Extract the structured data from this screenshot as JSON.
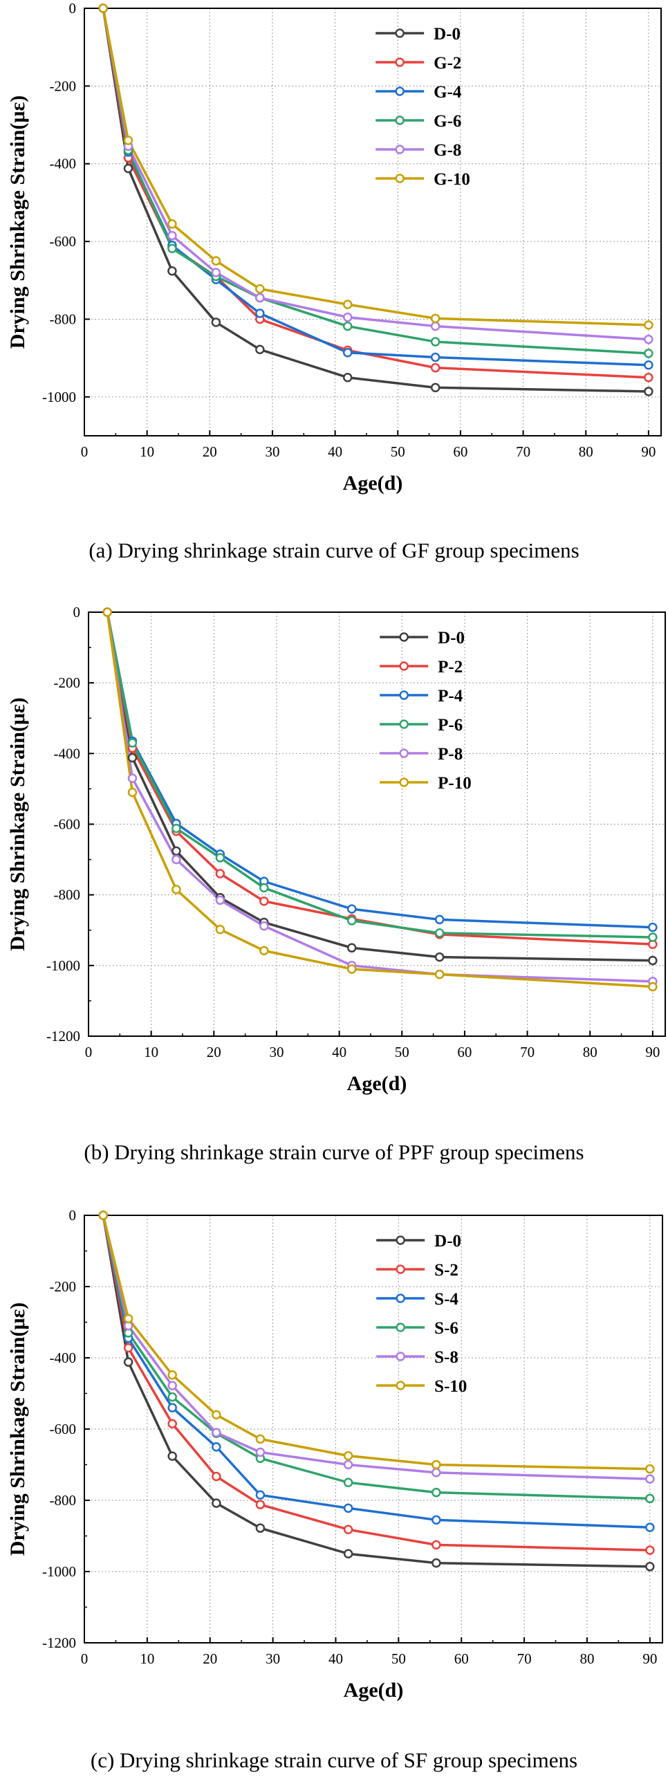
{
  "chart_data": [
    {
      "type": "line",
      "caption": "(a) Drying shrinkage strain curve of GF group specimens",
      "xlabel": "Age(d)",
      "ylabel": "Drying Shrinkage Strain(με)",
      "xlim": [
        0,
        92
      ],
      "ylim": [
        -1100,
        0
      ],
      "xticks": [
        0,
        10,
        20,
        30,
        40,
        50,
        60,
        70,
        80,
        90
      ],
      "yticks": [
        0,
        -200,
        -400,
        -600,
        -800,
        -1000
      ],
      "grid": true,
      "legend_position": "top-right",
      "x": [
        3,
        7,
        14,
        21,
        28,
        42,
        56,
        90
      ],
      "series": [
        {
          "name": "D-0",
          "color": "#404040",
          "values": [
            0,
            -412,
            -676,
            -808,
            -878,
            -950,
            -976,
            -986
          ]
        },
        {
          "name": "G-2",
          "color": "#e8413c",
          "values": [
            0,
            -385,
            -615,
            -690,
            -800,
            -880,
            -925,
            -950
          ]
        },
        {
          "name": "G-4",
          "color": "#1f6fd0",
          "values": [
            0,
            -370,
            -610,
            -698,
            -785,
            -886,
            -898,
            -918
          ]
        },
        {
          "name": "G-6",
          "color": "#2fa36b",
          "values": [
            0,
            -365,
            -618,
            -690,
            -745,
            -818,
            -858,
            -888
          ]
        },
        {
          "name": "G-8",
          "color": "#b07ce6",
          "values": [
            0,
            -355,
            -585,
            -680,
            -745,
            -795,
            -818,
            -852
          ]
        },
        {
          "name": "G-10",
          "color": "#c9a000",
          "values": [
            0,
            -340,
            -555,
            -650,
            -722,
            -762,
            -798,
            -815
          ]
        }
      ]
    },
    {
      "type": "line",
      "caption": "(b) Drying shrinkage strain curve of PPF group specimens",
      "xlabel": "Age(d)",
      "ylabel": "Drying Shrinkage Strain(με)",
      "xlim": [
        0,
        92
      ],
      "ylim": [
        -1200,
        0
      ],
      "xticks": [
        0,
        10,
        20,
        30,
        40,
        50,
        60,
        70,
        80,
        90
      ],
      "yticks": [
        0,
        -200,
        -400,
        -600,
        -800,
        -1000,
        -1200
      ],
      "grid": true,
      "legend_position": "top-right",
      "x": [
        3,
        7,
        14,
        21,
        28,
        42,
        56,
        90
      ],
      "series": [
        {
          "name": "D-0",
          "color": "#404040",
          "values": [
            0,
            -412,
            -676,
            -808,
            -878,
            -950,
            -976,
            -986
          ]
        },
        {
          "name": "P-2",
          "color": "#e8413c",
          "values": [
            0,
            -385,
            -620,
            -740,
            -818,
            -868,
            -912,
            -940
          ]
        },
        {
          "name": "P-4",
          "color": "#1f6fd0",
          "values": [
            0,
            -365,
            -598,
            -685,
            -762,
            -840,
            -870,
            -892
          ]
        },
        {
          "name": "P-6",
          "color": "#2fa36b",
          "values": [
            0,
            -370,
            -612,
            -695,
            -780,
            -873,
            -908,
            -920
          ]
        },
        {
          "name": "P-8",
          "color": "#b07ce6",
          "values": [
            0,
            -470,
            -700,
            -815,
            -888,
            -1000,
            -1025,
            -1045
          ]
        },
        {
          "name": "P-10",
          "color": "#c9a000",
          "values": [
            0,
            -510,
            -785,
            -898,
            -958,
            -1010,
            -1025,
            -1060
          ]
        }
      ]
    },
    {
      "type": "line",
      "caption": "(c) Drying shrinkage strain curve of SF group specimens",
      "xlabel": "Age(d)",
      "ylabel": "Drying Shrinkage Strain(με)",
      "xlim": [
        0,
        92
      ],
      "ylim": [
        -1200,
        0
      ],
      "xticks": [
        0,
        10,
        20,
        30,
        40,
        50,
        60,
        70,
        80,
        90
      ],
      "yticks": [
        0,
        -200,
        -400,
        -600,
        -800,
        -1000,
        -1200
      ],
      "grid": true,
      "legend_position": "top-right",
      "x": [
        3,
        7,
        14,
        21,
        28,
        42,
        56,
        90
      ],
      "series": [
        {
          "name": "D-0",
          "color": "#404040",
          "values": [
            0,
            -412,
            -676,
            -808,
            -878,
            -950,
            -976,
            -986
          ]
        },
        {
          "name": "S-2",
          "color": "#e8413c",
          "values": [
            0,
            -372,
            -585,
            -733,
            -812,
            -882,
            -925,
            -940
          ]
        },
        {
          "name": "S-4",
          "color": "#1f6fd0",
          "values": [
            0,
            -345,
            -540,
            -650,
            -785,
            -822,
            -855,
            -876
          ]
        },
        {
          "name": "S-6",
          "color": "#2fa36b",
          "values": [
            0,
            -330,
            -510,
            -612,
            -682,
            -750,
            -778,
            -795
          ]
        },
        {
          "name": "S-8",
          "color": "#b07ce6",
          "values": [
            0,
            -310,
            -478,
            -610,
            -665,
            -700,
            -722,
            -740
          ]
        },
        {
          "name": "S-10",
          "color": "#c9a000",
          "values": [
            0,
            -290,
            -448,
            -560,
            -628,
            -675,
            -700,
            -712
          ]
        }
      ]
    }
  ]
}
